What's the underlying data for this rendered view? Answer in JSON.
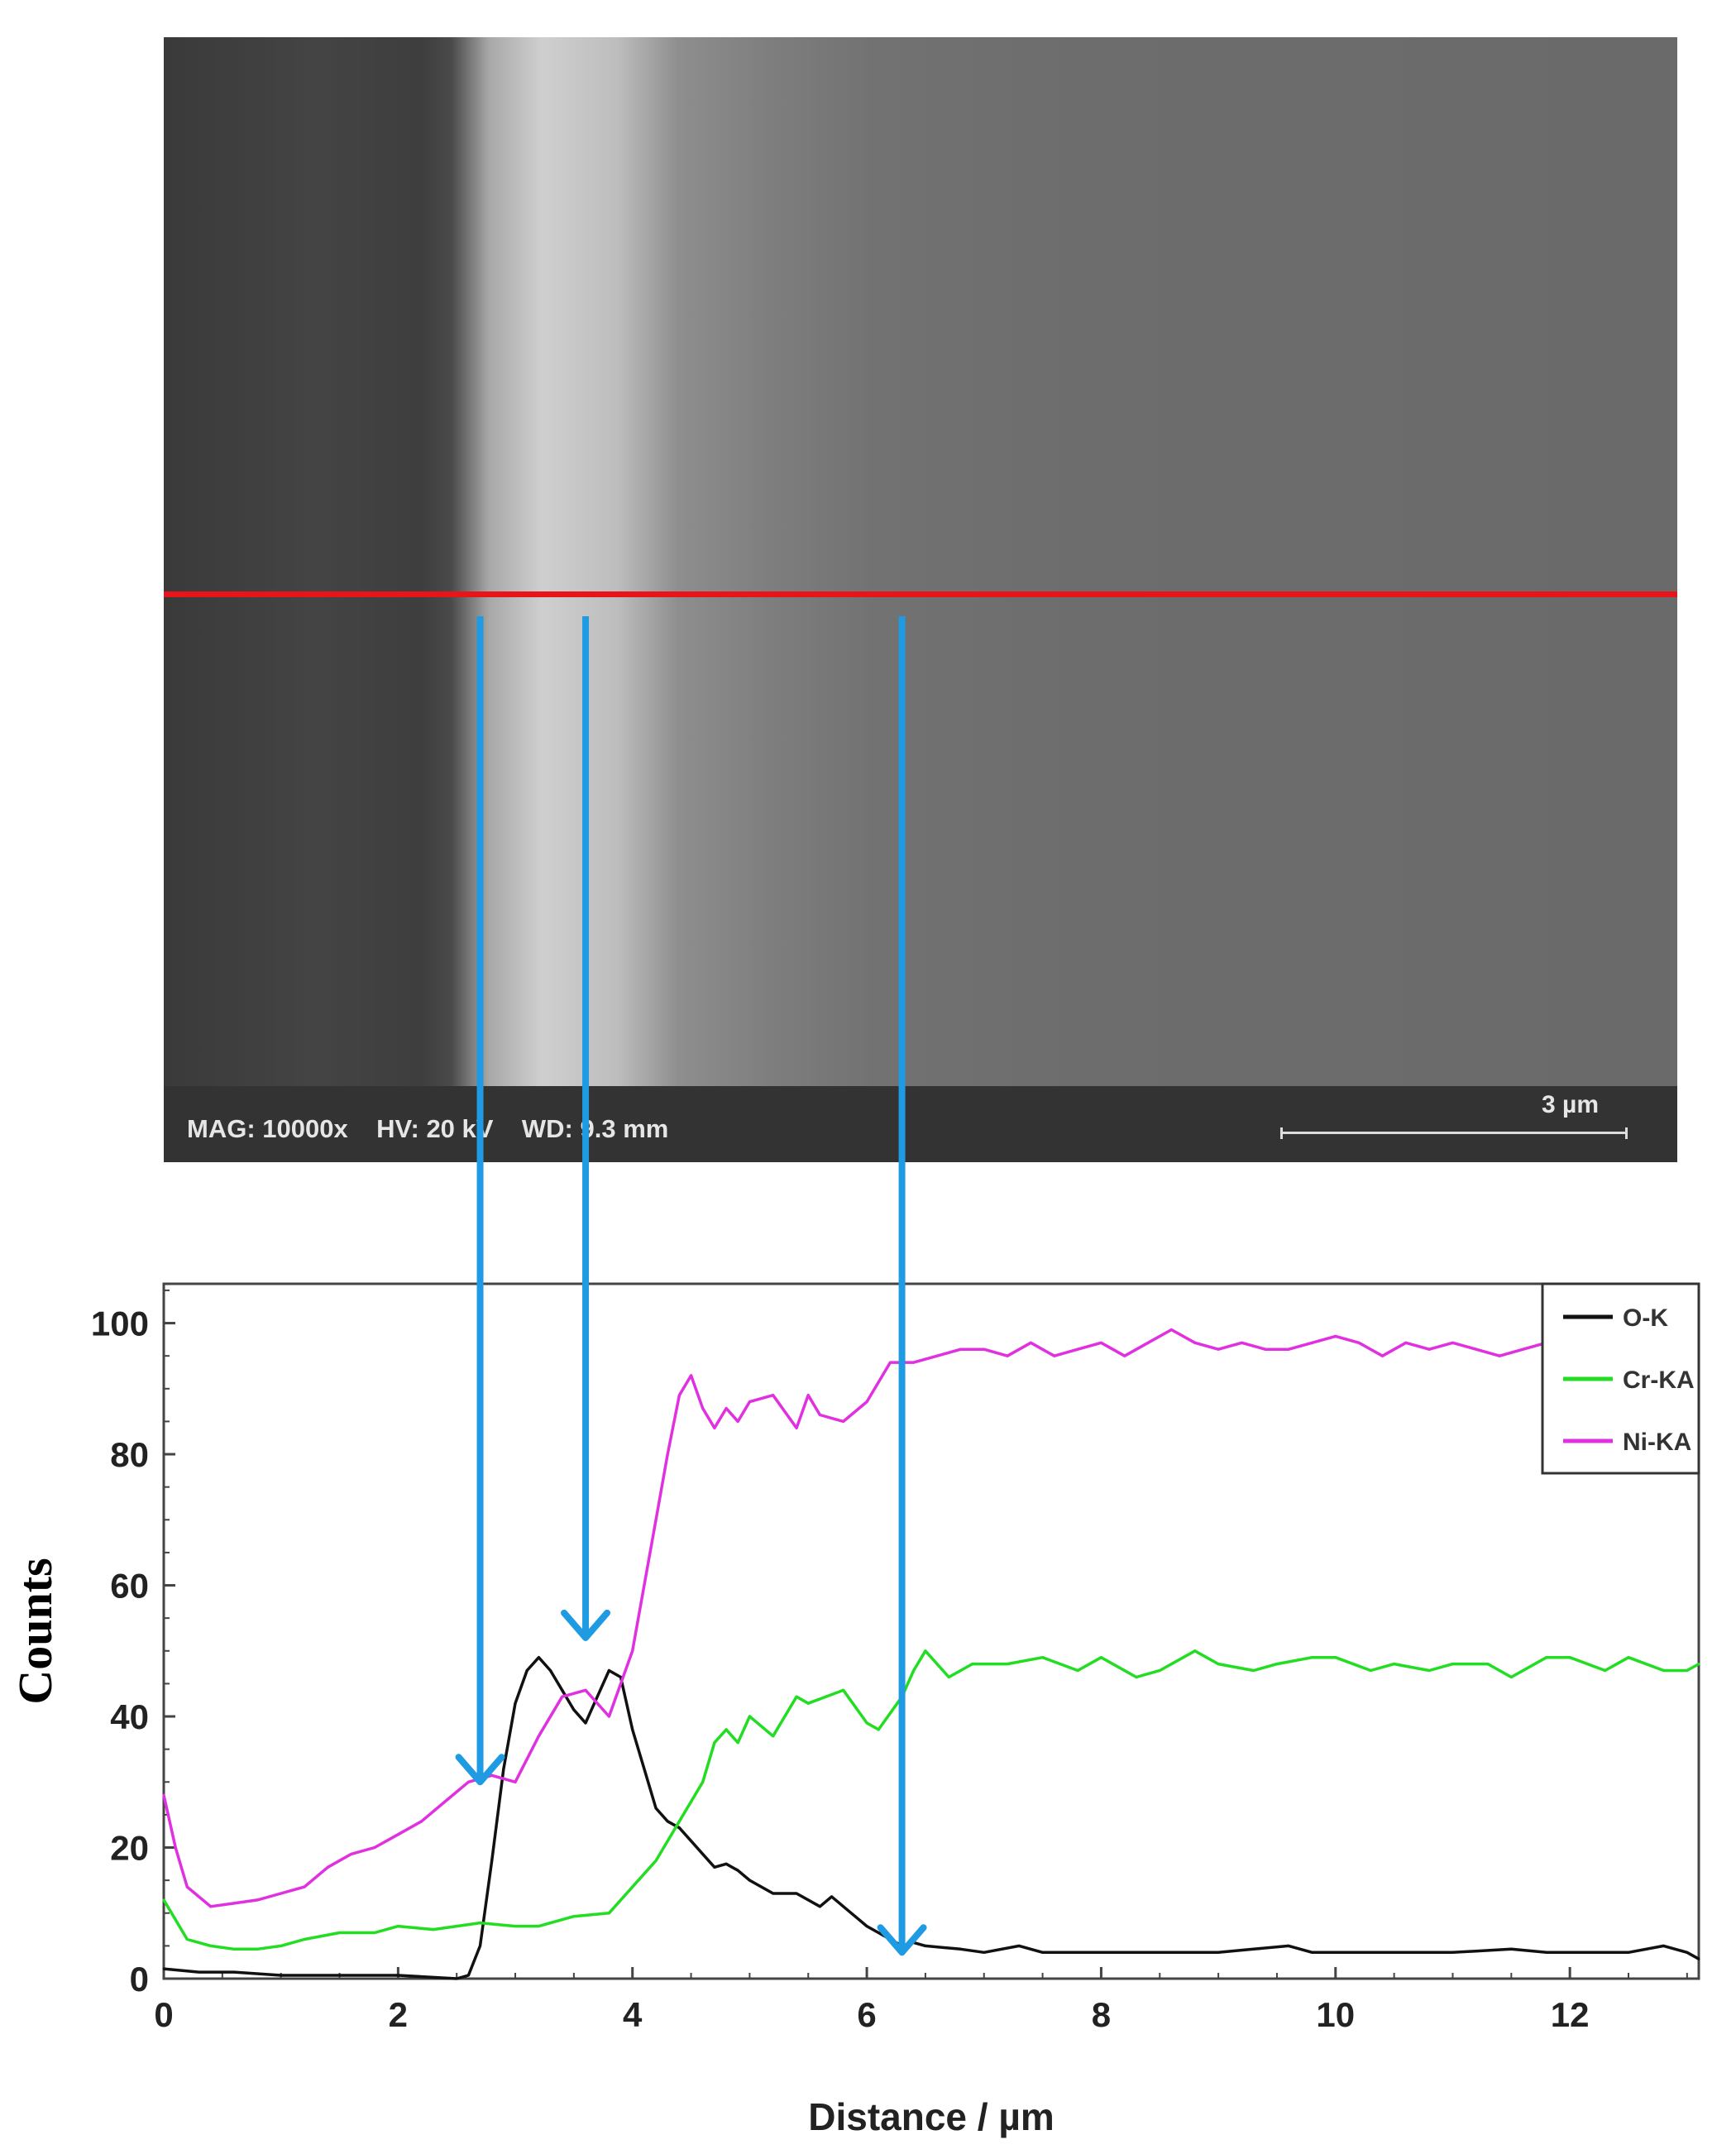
{
  "sem_image": {
    "info": "MAG: 10000x    HV: 20 kV    WD: 9.3 mm",
    "scale_label": "3 µm"
  },
  "chart_data": {
    "type": "line",
    "xlabel": "Distance / µm",
    "ylabel": "Counts",
    "xlim": [
      0,
      13.1
    ],
    "ylim": [
      0,
      106
    ],
    "xticks": [
      0,
      2,
      4,
      6,
      8,
      10,
      12
    ],
    "yticks": [
      0,
      20,
      40,
      60,
      80,
      100
    ],
    "legend_position": "top-right",
    "series": [
      {
        "name": "O-K",
        "color": "#111111",
        "x": [
          0,
          0.3,
          0.6,
          1.0,
          1.5,
          2.0,
          2.5,
          2.6,
          2.7,
          2.8,
          2.9,
          3.0,
          3.1,
          3.2,
          3.3,
          3.4,
          3.5,
          3.6,
          3.7,
          3.8,
          3.9,
          4.0,
          4.1,
          4.2,
          4.3,
          4.4,
          4.5,
          4.6,
          4.7,
          4.8,
          4.9,
          5.0,
          5.2,
          5.4,
          5.6,
          5.7,
          5.8,
          5.9,
          6.0,
          6.1,
          6.2,
          6.3,
          6.4,
          6.5,
          6.8,
          7.0,
          7.3,
          7.5,
          7.7,
          8.0,
          8.3,
          8.6,
          9.0,
          9.3,
          9.6,
          9.8,
          10.0,
          10.5,
          11.0,
          11.5,
          11.8,
          12.0,
          12.5,
          12.8,
          13.0,
          13.1
        ],
        "y": [
          1.5,
          1,
          1,
          0.5,
          0.5,
          0.5,
          0,
          0.5,
          5,
          18,
          32,
          42,
          47,
          49,
          47,
          44,
          41,
          39,
          43,
          47,
          46,
          38,
          32,
          26,
          24,
          23,
          21,
          19,
          17,
          17.5,
          16.5,
          15,
          13,
          13,
          11,
          12.5,
          11,
          9.5,
          8,
          7,
          6,
          5,
          5.5,
          5,
          4.5,
          4,
          5,
          4,
          4,
          4,
          4,
          4,
          4,
          4.5,
          5,
          4,
          4,
          4,
          4,
          4.5,
          4,
          4,
          4,
          5,
          4,
          3
        ]
      },
      {
        "name": "Cr-KA",
        "color": "#22dd22",
        "x": [
          0,
          0.1,
          0.2,
          0.4,
          0.6,
          0.8,
          1.0,
          1.2,
          1.5,
          1.8,
          2.0,
          2.3,
          2.5,
          2.7,
          3.0,
          3.2,
          3.5,
          3.8,
          4.0,
          4.2,
          4.4,
          4.6,
          4.7,
          4.8,
          4.9,
          5.0,
          5.2,
          5.4,
          5.5,
          5.8,
          6.0,
          6.1,
          6.3,
          6.4,
          6.5,
          6.7,
          6.9,
          7.2,
          7.5,
          7.8,
          8.0,
          8.3,
          8.5,
          8.8,
          9.0,
          9.3,
          9.5,
          9.8,
          10.0,
          10.3,
          10.5,
          10.8,
          11.0,
          11.3,
          11.5,
          11.8,
          12.0,
          12.3,
          12.5,
          12.8,
          13.0,
          13.1
        ],
        "y": [
          12,
          9,
          6,
          5,
          4.5,
          4.5,
          5,
          6,
          7,
          7,
          8,
          7.5,
          8,
          8.5,
          8,
          8,
          9.5,
          10,
          14,
          18,
          24,
          30,
          36,
          38,
          36,
          40,
          37,
          43,
          42,
          44,
          39,
          38,
          43,
          47,
          50,
          46,
          48,
          48,
          49,
          47,
          49,
          46,
          47,
          50,
          48,
          47,
          48,
          49,
          49,
          47,
          48,
          47,
          48,
          48,
          46,
          49,
          49,
          47,
          49,
          47,
          47,
          48
        ]
      },
      {
        "name": "Ni-KA",
        "color": "#e030e0",
        "x": [
          0,
          0.1,
          0.2,
          0.4,
          0.6,
          0.8,
          1.0,
          1.2,
          1.4,
          1.6,
          1.8,
          2.0,
          2.2,
          2.4,
          2.6,
          2.8,
          3.0,
          3.2,
          3.4,
          3.6,
          3.8,
          4.0,
          4.1,
          4.2,
          4.3,
          4.4,
          4.5,
          4.6,
          4.7,
          4.8,
          4.9,
          5.0,
          5.2,
          5.4,
          5.5,
          5.6,
          5.8,
          6.0,
          6.2,
          6.4,
          6.6,
          6.8,
          7.0,
          7.2,
          7.4,
          7.6,
          7.8,
          8.0,
          8.2,
          8.4,
          8.6,
          8.8,
          9.0,
          9.2,
          9.4,
          9.6,
          9.8,
          10.0,
          10.2,
          10.4,
          10.6,
          10.8,
          11.0,
          11.2,
          11.4,
          11.6,
          11.8
        ],
        "y": [
          28,
          20,
          14,
          11,
          11.5,
          12,
          13,
          14,
          17,
          19,
          20,
          22,
          24,
          27,
          30,
          31,
          30,
          37,
          43,
          44,
          40,
          50,
          60,
          70,
          80,
          89,
          92,
          87,
          84,
          87,
          85,
          88,
          89,
          84,
          89,
          86,
          85,
          88,
          94,
          94,
          95,
          96,
          96,
          95,
          97,
          95,
          96,
          97,
          95,
          97,
          99,
          97,
          96,
          97,
          96,
          96,
          97,
          98,
          97,
          95,
          97,
          96,
          97,
          96,
          95,
          96,
          97
        ]
      }
    ]
  },
  "arrows": {
    "color": "#1e9be3",
    "targets_um": [
      2.7,
      3.6,
      6.3
    ]
  }
}
